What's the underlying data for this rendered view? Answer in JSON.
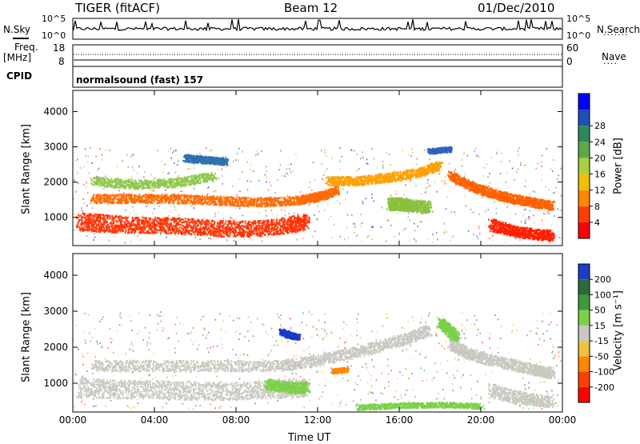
{
  "header": {
    "station": "TIGER (fitACF)",
    "beam": "Beam 12",
    "date": "01/Dec/2010"
  },
  "top_panels": {
    "nsky_label": "N.Sky",
    "nsky_ticks": [
      "10^5",
      "10^0"
    ],
    "nsearch_label": "N.Search",
    "nsearch_ticks": [
      "10^5",
      "10^0"
    ],
    "freq_label": "Freq.",
    "freq_unit": "[MHz]",
    "freq_ticks": [
      "18",
      "8"
    ],
    "nave_label": "Nave",
    "nave_ticks": [
      "60",
      "0"
    ],
    "cpid_label": "CPID",
    "cpid_value": "normalsound (fast) 157"
  },
  "chart_data": [
    {
      "type": "heatmap",
      "name": "power",
      "ylabel": "Slant Range [km]",
      "xlabel": "",
      "yticks": [
        1000,
        2000,
        3000,
        4000
      ],
      "ylim": [
        200,
        4600
      ],
      "xticks": [
        "00:00",
        "04:00",
        "08:00",
        "12:00",
        "16:00",
        "20:00",
        "00:00"
      ],
      "xlim": [
        0,
        24
      ],
      "colorbar_label": "Power [dB]",
      "colorbar_ticks": [
        4,
        8,
        12,
        16,
        20,
        24,
        28
      ],
      "colorbar_colors": [
        "#0000ff",
        "#1f4fb4",
        "#2d8a5a",
        "#5ea84a",
        "#a8d040",
        "#f0c000",
        "#ff8800",
        "#ff4000",
        "#ff0000"
      ],
      "bands": [
        {
          "t": [
            0.3,
            1.5,
            3.0,
            4.5,
            6.0,
            7.5,
            9.0,
            10.5,
            11.5
          ],
          "r": [
            900,
            850,
            800,
            800,
            750,
            700,
            700,
            800,
            900
          ],
          "w": [
            500,
            500,
            450,
            450,
            450,
            450,
            450,
            450,
            450
          ],
          "c": "#ff3000"
        },
        {
          "t": [
            1.0,
            3.0,
            5.0,
            7.0,
            9.0,
            11.0,
            12.0,
            13.0
          ],
          "r": [
            1550,
            1550,
            1550,
            1500,
            1450,
            1500,
            1600,
            1800
          ],
          "w": [
            250,
            250,
            250,
            250,
            250,
            250,
            250,
            250
          ],
          "c": "#ff6a00"
        },
        {
          "t": [
            12.5,
            14.0,
            15.5,
            17.0,
            18.0
          ],
          "r": [
            2050,
            2050,
            2150,
            2300,
            2500
          ],
          "w": [
            250,
            250,
            250,
            250,
            250
          ],
          "c": "#ffa000"
        },
        {
          "t": [
            18.5,
            19.5,
            20.5,
            21.5,
            22.5,
            23.5
          ],
          "r": [
            2200,
            1900,
            1700,
            1550,
            1450,
            1350
          ],
          "w": [
            250,
            250,
            250,
            250,
            250,
            250
          ],
          "c": "#ff6000"
        },
        {
          "t": [
            20.5,
            21.5,
            22.5,
            23.5
          ],
          "r": [
            800,
            650,
            550,
            500
          ],
          "w": [
            350,
            300,
            300,
            300
          ],
          "c": "#ff2000"
        },
        {
          "t": [
            1.0,
            3.0,
            5.0,
            7.0
          ],
          "r": [
            2050,
            1950,
            2000,
            2200
          ],
          "w": [
            250,
            250,
            250,
            250
          ],
          "c": "#8cc84a"
        },
        {
          "t": [
            5.5,
            6.5,
            7.5
          ],
          "r": [
            2700,
            2650,
            2600
          ],
          "w": [
            200,
            200,
            200
          ],
          "c": "#2d70b0"
        },
        {
          "t": [
            15.5,
            16.0,
            16.5,
            17.5
          ],
          "r": [
            1400,
            1400,
            1350,
            1300
          ],
          "w": [
            350,
            350,
            350,
            350
          ],
          "c": "#88c040"
        },
        {
          "t": [
            17.5,
            18.5
          ],
          "r": [
            2900,
            2950
          ],
          "w": [
            150,
            150
          ],
          "c": "#3060c0"
        }
      ]
    },
    {
      "type": "heatmap",
      "name": "velocity",
      "ylabel": "Slant Range [km]",
      "xlabel": "Time UT",
      "yticks": [
        1000,
        2000,
        3000,
        4000
      ],
      "ylim": [
        200,
        4600
      ],
      "xticks": [
        "00:00",
        "04:00",
        "08:00",
        "12:00",
        "16:00",
        "20:00",
        "00:00"
      ],
      "xlim": [
        0,
        24
      ],
      "colorbar_label": "Velocity [m s⁻¹]",
      "colorbar_ticks": [
        200,
        100,
        50,
        15,
        -15,
        -50,
        -100,
        -200
      ],
      "colorbar_colors": [
        "#1a3cc8",
        "#2d6a3a",
        "#3c9a3c",
        "#7bd04a",
        "#c8c8c0",
        "#f0c040",
        "#ff8800",
        "#ff4000",
        "#ff0000"
      ],
      "bands": [
        {
          "t": [
            0.3,
            2.0,
            4.0,
            6.0,
            8.0,
            10.0,
            11.5
          ],
          "r": [
            900,
            850,
            850,
            800,
            800,
            850,
            900
          ],
          "w": [
            550,
            500,
            500,
            500,
            500,
            500,
            500
          ],
          "c": "#c8c8c0"
        },
        {
          "t": [
            1.0,
            4.0,
            7.0,
            10.0,
            12.0,
            14.0,
            16.0,
            17.5
          ],
          "r": [
            1500,
            1500,
            1500,
            1500,
            1650,
            1900,
            2200,
            2500
          ],
          "w": [
            300,
            300,
            300,
            300,
            300,
            300,
            300,
            300
          ],
          "c": "#c8c8c0"
        },
        {
          "t": [
            18.5,
            19.5,
            21.0,
            22.5,
            23.5
          ],
          "r": [
            2100,
            1800,
            1600,
            1400,
            1300
          ],
          "w": [
            300,
            300,
            300,
            300,
            300
          ],
          "c": "#c8c8c0"
        },
        {
          "t": [
            20.5,
            22.0,
            23.5
          ],
          "r": [
            800,
            600,
            500
          ],
          "w": [
            400,
            350,
            300
          ],
          "c": "#c8c8c0"
        },
        {
          "t": [
            9.5,
            10.5,
            11.5
          ],
          "r": [
            1000,
            900,
            900
          ],
          "w": [
            300,
            300,
            300
          ],
          "c": "#7bd04a"
        },
        {
          "t": [
            18.0,
            18.4,
            18.8
          ],
          "r": [
            2700,
            2500,
            2300
          ],
          "w": [
            250,
            300,
            250
          ],
          "c": "#7bd04a"
        },
        {
          "t": [
            14.0,
            16.0,
            18.0,
            20.0
          ],
          "r": [
            350,
            400,
            420,
            380
          ],
          "w": [
            150,
            150,
            150,
            150
          ],
          "c": "#7bd04a"
        },
        {
          "t": [
            10.2,
            10.6,
            11.0
          ],
          "r": [
            2450,
            2350,
            2300
          ],
          "w": [
            150,
            150,
            150
          ],
          "c": "#1a3cc8"
        },
        {
          "t": [
            12.8,
            13.4
          ],
          "r": [
            1350,
            1400
          ],
          "w": [
            120,
            120
          ],
          "c": "#ff8800"
        }
      ]
    }
  ]
}
